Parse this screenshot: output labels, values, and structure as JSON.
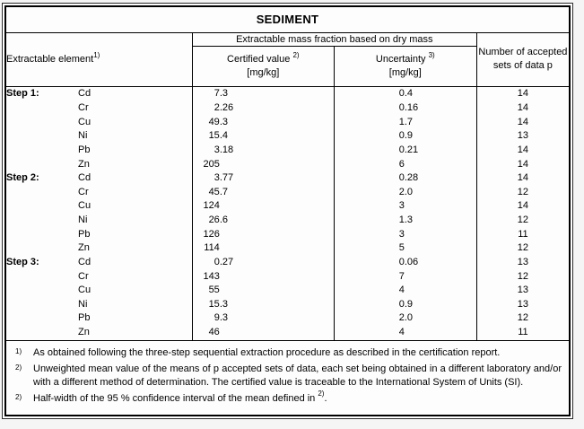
{
  "colors": {
    "page_background": "#f5f5f5",
    "table_background": "#fdfdfd",
    "border": "#000000",
    "text": "#000000"
  },
  "title": "SEDIMENT",
  "header": {
    "element_col": {
      "label": "Extractable element",
      "sup": "1)"
    },
    "mass_fraction_col": "Extractable mass fraction based on dry mass",
    "certified_col": {
      "label": "Certified value",
      "sup": "2)",
      "unit": "[mg/kg]"
    },
    "uncertainty_col": {
      "label": "Uncertainty",
      "sup": "3)",
      "unit": "[mg/kg]"
    },
    "sets_col": "Number of accepted sets of data p"
  },
  "rows": [
    {
      "step": "Step 1:",
      "element": "Cd",
      "certified": "7.3",
      "uncertainty": "0.4",
      "sets": "14"
    },
    {
      "step": "",
      "element": "Cr",
      "certified": "2.26",
      "uncertainty": "0.16",
      "sets": "14"
    },
    {
      "step": "",
      "element": "Cu",
      "certified": "49.3",
      "uncertainty": "1.7",
      "sets": "14"
    },
    {
      "step": "",
      "element": "Ni",
      "certified": "15.4",
      "uncertainty": "0.9",
      "sets": "13"
    },
    {
      "step": "",
      "element": "Pb",
      "certified": "3.18",
      "uncertainty": "0.21",
      "sets": "14"
    },
    {
      "step": "",
      "element": "Zn",
      "certified": "205",
      "uncertainty": "6",
      "sets": "14"
    },
    {
      "step": "Step 2:",
      "element": "Cd",
      "certified": "3.77",
      "uncertainty": "0.28",
      "sets": "14"
    },
    {
      "step": "",
      "element": "Cr",
      "certified": "45.7",
      "uncertainty": "2.0",
      "sets": "12"
    },
    {
      "step": "",
      "element": "Cu",
      "certified": "124",
      "uncertainty": "3",
      "sets": "14"
    },
    {
      "step": "",
      "element": "Ni",
      "certified": "26.6",
      "uncertainty": "1.3",
      "sets": "12"
    },
    {
      "step": "",
      "element": "Pb",
      "certified": "126",
      "uncertainty": "3",
      "sets": "11"
    },
    {
      "step": "",
      "element": "Zn",
      "certified": "114",
      "uncertainty": "5",
      "sets": "12"
    },
    {
      "step": "Step 3:",
      "element": "Cd",
      "certified": "0.27",
      "uncertainty": "0.06",
      "sets": "13"
    },
    {
      "step": "",
      "element": "Cr",
      "certified": "143",
      "uncertainty": "7",
      "sets": "12"
    },
    {
      "step": "",
      "element": "Cu",
      "certified": "55",
      "uncertainty": "4",
      "sets": "13"
    },
    {
      "step": "",
      "element": "Ni",
      "certified": "15.3",
      "uncertainty": "0.9",
      "sets": "13"
    },
    {
      "step": "",
      "element": "Pb",
      "certified": "9.3",
      "uncertainty": "2.0",
      "sets": "12"
    },
    {
      "step": "",
      "element": "Zn",
      "certified": "46",
      "uncertainty": "4",
      "sets": "11"
    }
  ],
  "footnotes": [
    {
      "marker": "1)",
      "text": "As obtained following the three-step sequential extraction procedure as described in the certification report.",
      "sup": "",
      "tail": "",
      "justify": false
    },
    {
      "marker": "2)",
      "text": "Unweighted mean value of the means of p accepted sets of data, each set being obtained in a different laboratory and/or with a different method of determination. The certified value is traceable to the International System of Units (SI).",
      "sup": "",
      "tail": "",
      "justify": true
    },
    {
      "marker": "2)",
      "text": "Half-width of the 95 % confidence interval of the mean defined in ",
      "sup": "2)",
      "tail": ".",
      "justify": false
    }
  ]
}
